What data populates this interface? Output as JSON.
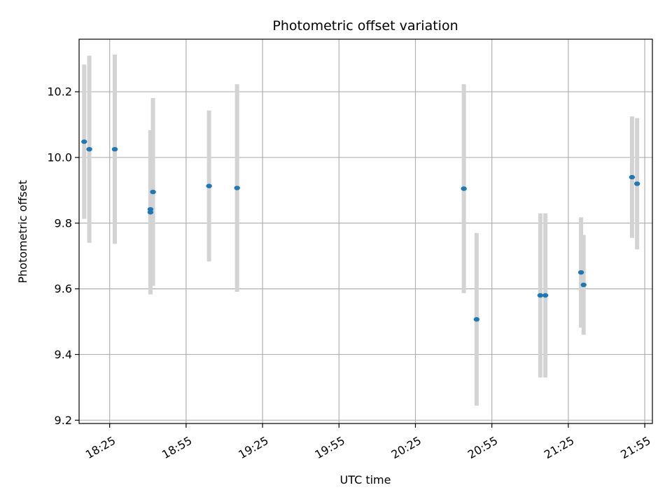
{
  "chart_data": {
    "type": "scatter",
    "title": "Photometric offset variation",
    "xlabel": "UTC time",
    "ylabel": "Photometric offset",
    "x_ticks": [
      "18:25",
      "18:55",
      "19:25",
      "19:55",
      "20:25",
      "20:55",
      "21:25",
      "21:55"
    ],
    "y_ticks": [
      "9.2",
      "9.4",
      "9.6",
      "9.8",
      "10.0",
      "10.2"
    ],
    "xlim": [
      "18:13",
      "21:58"
    ],
    "ylim": [
      9.19,
      10.36
    ],
    "grid": true,
    "marker_color": "#1f77b4",
    "errorbar_color": "#d3d3d3",
    "points": [
      {
        "t": "18:15",
        "y": 10.048,
        "err": 0.235
      },
      {
        "t": "18:17",
        "y": 10.025,
        "err": 0.285
      },
      {
        "t": "18:27",
        "y": 10.025,
        "err": 0.288
      },
      {
        "t": "18:41",
        "y": 9.842,
        "err": 0.24
      },
      {
        "t": "18:41",
        "y": 9.833,
        "err": 0.25
      },
      {
        "t": "18:42",
        "y": 9.895,
        "err": 0.286
      },
      {
        "t": "19:04",
        "y": 9.913,
        "err": 0.23
      },
      {
        "t": "19:15",
        "y": 9.907,
        "err": 0.316
      },
      {
        "t": "20:44",
        "y": 9.905,
        "err": 0.318
      },
      {
        "t": "20:49",
        "y": 9.507,
        "err": 0.263
      },
      {
        "t": "21:14",
        "y": 9.58,
        "err": 0.25
      },
      {
        "t": "21:16",
        "y": 9.58,
        "err": 0.25
      },
      {
        "t": "21:30",
        "y": 9.65,
        "err": 0.168
      },
      {
        "t": "21:31",
        "y": 9.612,
        "err": 0.152
      },
      {
        "t": "21:50",
        "y": 9.94,
        "err": 0.185
      },
      {
        "t": "21:52",
        "y": 9.92,
        "err": 0.2
      }
    ]
  }
}
